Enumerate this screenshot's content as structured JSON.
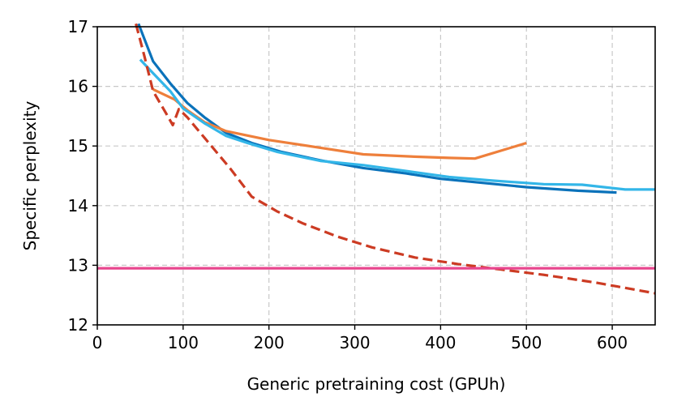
{
  "chart_data": {
    "type": "line",
    "title": "",
    "xlabel": "Generic pretraining cost (GPUh)",
    "ylabel": "Specific perplexity",
    "xlim": [
      0,
      650
    ],
    "ylim": [
      12,
      17
    ],
    "xticks": [
      0,
      100,
      200,
      300,
      400,
      500,
      600
    ],
    "yticks": [
      12,
      13,
      14,
      15,
      16,
      17
    ],
    "grid": true,
    "series": [
      {
        "name": "series-dark-blue",
        "color": "#0a72ba",
        "dash": "solid",
        "x": [
          48,
          65,
          85,
          105,
          125,
          150,
          180,
          215,
          260,
          310,
          360,
          400,
          450,
          500,
          560,
          605
        ],
        "y": [
          17.05,
          16.42,
          16.05,
          15.72,
          15.48,
          15.22,
          15.05,
          14.9,
          14.76,
          14.63,
          14.54,
          14.45,
          14.38,
          14.31,
          14.25,
          14.22
        ]
      },
      {
        "name": "series-orange",
        "color": "#ee7f3b",
        "dash": "solid",
        "x": [
          65,
          90,
          105,
          125,
          150,
          200,
          260,
          310,
          370,
          410,
          440,
          500
        ],
        "y": [
          15.95,
          15.78,
          15.6,
          15.4,
          15.25,
          15.1,
          14.97,
          14.86,
          14.82,
          14.8,
          14.79,
          15.05
        ]
      },
      {
        "name": "series-light-blue",
        "color": "#33b6e8",
        "dash": "solid",
        "x": [
          50,
          65,
          85,
          100,
          125,
          150,
          175,
          210,
          260,
          310,
          360,
          410,
          460,
          520,
          565,
          615,
          650
        ],
        "y": [
          16.45,
          16.22,
          15.92,
          15.63,
          15.38,
          15.17,
          15.05,
          14.9,
          14.75,
          14.68,
          14.58,
          14.48,
          14.42,
          14.36,
          14.35,
          14.27,
          14.27
        ]
      },
      {
        "name": "series-red-dashed",
        "color": "#cc3b23",
        "dash": "dashed",
        "x": [
          45,
          55,
          65,
          80,
          88,
          95,
          105,
          130,
          155,
          180,
          210,
          240,
          280,
          320,
          370,
          420,
          470,
          520,
          580,
          650
        ],
        "y": [
          17.05,
          16.5,
          15.92,
          15.55,
          15.35,
          15.62,
          15.48,
          15.05,
          14.62,
          14.15,
          13.9,
          13.7,
          13.48,
          13.3,
          13.13,
          13.02,
          12.93,
          12.84,
          12.71,
          12.53
        ]
      },
      {
        "name": "series-pink-baseline",
        "color": "#e8468e",
        "dash": "solid",
        "x": [
          0,
          650
        ],
        "y": [
          12.95,
          12.95
        ]
      }
    ]
  }
}
